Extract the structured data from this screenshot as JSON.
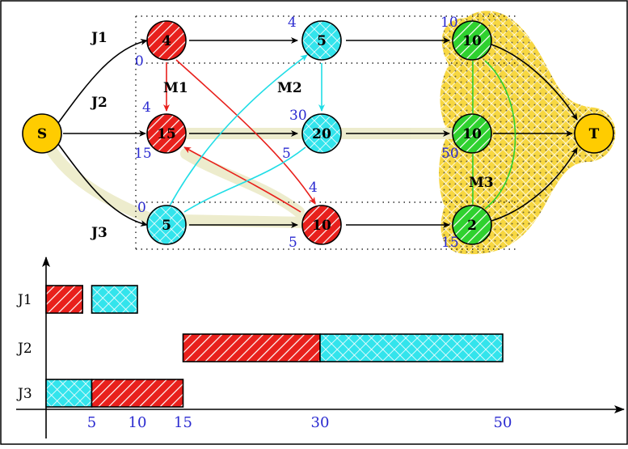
{
  "colors": {
    "m1": "#e8201c",
    "m2": "#33e4ec",
    "m3": "#2fd12f",
    "endpoint": "#ffcc00",
    "time_text": "#2a2ad0",
    "m3_region": "#f6d020"
  },
  "jobs": [
    {
      "label": "J1"
    },
    {
      "label": "J2"
    },
    {
      "label": "J3"
    }
  ],
  "machines": [
    {
      "label": "M1"
    },
    {
      "label": "M2"
    },
    {
      "label": "M3"
    }
  ],
  "source": {
    "label": "S"
  },
  "sink": {
    "label": "T"
  },
  "nodes": [
    {
      "id": "j1-op1",
      "job": 1,
      "machine": 1,
      "duration": "4",
      "start_time": "0"
    },
    {
      "id": "j1-op2",
      "job": 1,
      "machine": 2,
      "duration": "5",
      "start_time": "4"
    },
    {
      "id": "j1-op3",
      "job": 1,
      "machine": 3,
      "duration": "10",
      "start_time": "10"
    },
    {
      "id": "j2-op1",
      "job": 2,
      "machine": 1,
      "duration": "15",
      "start_time": "4",
      "bottom_time": "15"
    },
    {
      "id": "j2-op2",
      "job": 2,
      "machine": 2,
      "duration": "20",
      "start_time": "30",
      "bottom_time": "5"
    },
    {
      "id": "j2-op3",
      "job": 2,
      "machine": 3,
      "duration": "10",
      "start_time": "50"
    },
    {
      "id": "j3-op1",
      "job": 3,
      "machine": 2,
      "duration": "5",
      "start_time": "0"
    },
    {
      "id": "j3-op2",
      "job": 3,
      "machine": 1,
      "duration": "10",
      "start_time": "4",
      "bottom_time": "5"
    },
    {
      "id": "j3-op3",
      "job": 3,
      "machine": 3,
      "duration": "2",
      "start_time": "15"
    }
  ],
  "gantt": {
    "rows": [
      {
        "label": "J1",
        "bars": [
          {
            "machine": 1,
            "start": 0,
            "end": 4
          },
          {
            "machine": 2,
            "start": 5,
            "end": 10
          }
        ]
      },
      {
        "label": "J2",
        "bars": [
          {
            "machine": 1,
            "start": 15,
            "end": 30
          },
          {
            "machine": 2,
            "start": 30,
            "end": 50
          }
        ]
      },
      {
        "label": "J3",
        "bars": [
          {
            "machine": 2,
            "start": 0,
            "end": 5
          },
          {
            "machine": 1,
            "start": 5,
            "end": 15
          }
        ]
      }
    ],
    "x_ticks": [
      "5",
      "10",
      "15",
      "30",
      "50"
    ]
  }
}
